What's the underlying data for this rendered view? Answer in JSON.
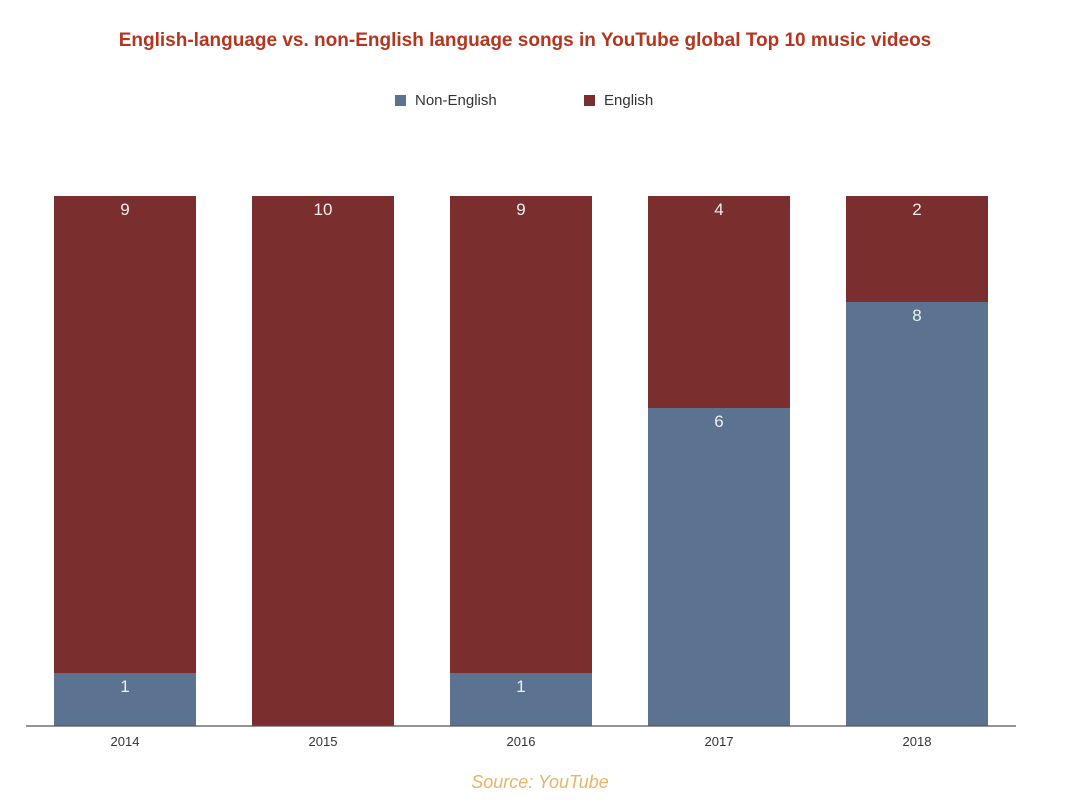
{
  "title": "English-language vs. non-English language songs in YouTube global Top 10  music videos",
  "source": "Source: YouTube",
  "colors": {
    "title": "#b5351f",
    "non_english": "#5b7391",
    "english": "#7a2e2e",
    "source": "#e7b46a",
    "axis": "#555555",
    "bar_label": "#eeeeee"
  },
  "chart_data": {
    "type": "bar",
    "stacked": true,
    "categories": [
      "2014",
      "2015",
      "2016",
      "2017",
      "2018"
    ],
    "series": [
      {
        "name": "Non-English",
        "values": [
          1,
          0,
          1,
          6,
          8
        ]
      },
      {
        "name": "English",
        "values": [
          9,
          10,
          9,
          4,
          2
        ]
      }
    ],
    "ylim": [
      0,
      10
    ],
    "grid": false,
    "legend_position": "top-center",
    "data_labels": {
      "Non-English": [
        "1",
        "",
        "1",
        "6",
        "8"
      ],
      "English": [
        "9",
        "10",
        "9",
        "4",
        "2"
      ]
    }
  }
}
